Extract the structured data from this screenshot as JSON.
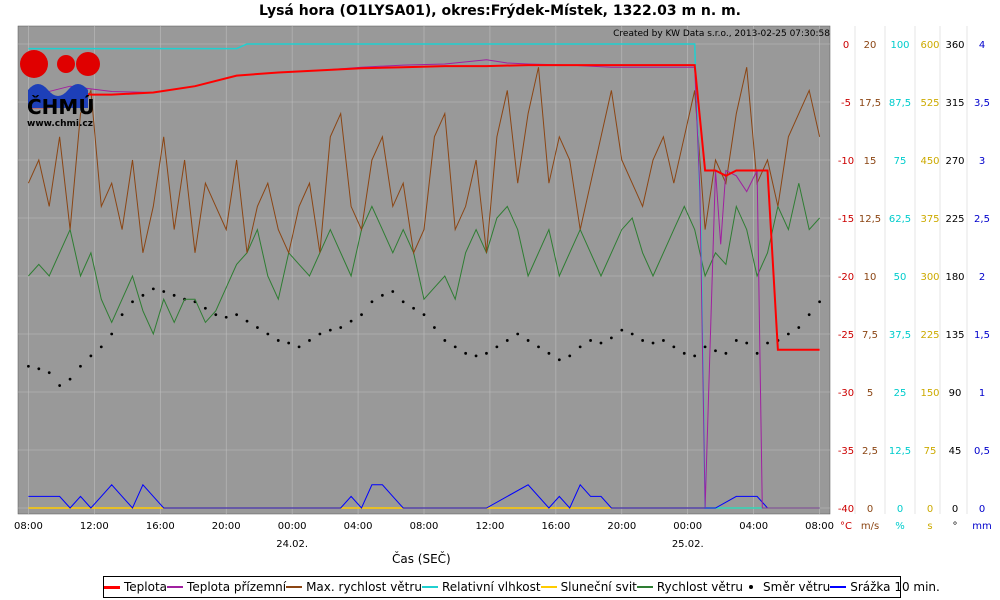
{
  "chart_data": {
    "type": "line",
    "title": "Lysá hora (O1LYSA01), okres:Frýdek-Místek, 1322.03 m n. m.",
    "watermark": "Created by KW Data s.r.o., 2013-02-25 07:30:58",
    "xlabel": "Čas (SEČ)",
    "x_tick_labels": [
      "08:00",
      "12:00",
      "16:00",
      "20:00",
      "00:00",
      "04:00",
      "08:00",
      "12:00",
      "16:00",
      "20:00",
      "00:00",
      "04:00",
      "08:00"
    ],
    "date_labels": [
      {
        "label": "24.02.",
        "at_tick": 4
      },
      {
        "label": "25.02.",
        "at_tick": 10
      }
    ],
    "axes": [
      {
        "unit": "°C",
        "color": "#cc0000",
        "ticks": [
          "0",
          "-5",
          "-10",
          "-15",
          "-20",
          "-25",
          "-30",
          "-35",
          "-40"
        ],
        "range": [
          -42,
          2
        ]
      },
      {
        "unit": "m/s",
        "color": "#8b4513",
        "ticks": [
          "20",
          "17,5",
          "15",
          "12,5",
          "10",
          "7,5",
          "5",
          "2,5",
          "0"
        ],
        "range": [
          0,
          20
        ]
      },
      {
        "unit": "%",
        "color": "#00cccc",
        "ticks": [
          "100",
          "87,5",
          "75",
          "62,5",
          "50",
          "37,5",
          "25",
          "12,5",
          "0"
        ],
        "range": [
          0,
          100
        ]
      },
      {
        "unit": "s",
        "color": "#ccaa00",
        "ticks": [
          "600",
          "525",
          "450",
          "375",
          "300",
          "225",
          "150",
          "75",
          "0"
        ],
        "range": [
          0,
          600
        ]
      },
      {
        "unit": "°",
        "color": "#000000",
        "ticks": [
          "360",
          "315",
          "270",
          "225",
          "180",
          "135",
          "90",
          "45",
          "0"
        ],
        "range": [
          0,
          360
        ]
      },
      {
        "unit": "mm",
        "color": "#0000cc",
        "ticks": [
          "4",
          "3,5",
          "3",
          "2,5",
          "2",
          "1,5",
          "1",
          "0,5",
          "0"
        ],
        "range": [
          0,
          4
        ]
      }
    ],
    "series": [
      {
        "name": "Teplota",
        "color": "#ff0000",
        "width": 2,
        "axis": 0,
        "x": [
          0,
          2,
          4,
          6,
          8,
          12,
          16,
          20,
          24,
          28,
          32,
          36,
          40,
          44,
          48,
          52,
          56,
          60,
          62,
          64,
          64.5,
          65,
          66,
          67,
          68,
          69,
          70,
          71,
          72,
          73,
          74,
          75,
          76
        ],
        "y": [
          -4,
          -4,
          -2.5,
          -2.8,
          -2.8,
          -2.6,
          -2,
          -1,
          -0.7,
          -0.5,
          -0.3,
          -0.2,
          -0.1,
          -0.1,
          0,
          0,
          0,
          0,
          0,
          0,
          -5,
          -10,
          -10,
          -10.5,
          -10,
          -10,
          -10,
          -10,
          -27,
          -27,
          -27,
          -27,
          -27
        ]
      },
      {
        "name": "Teplota přízemní",
        "color": "#a020a0",
        "width": 1,
        "axis": 0,
        "x": [
          0,
          4,
          8,
          12,
          16,
          20,
          24,
          28,
          32,
          36,
          40,
          44,
          46,
          48,
          52,
          56,
          60,
          64,
          64.5,
          65,
          66,
          66.5,
          67,
          68,
          69,
          70,
          70.5,
          71,
          72,
          74,
          76
        ],
        "y": [
          -3,
          -2,
          -2.5,
          -2.6,
          -2,
          -1,
          -0.7,
          -0.5,
          -0.2,
          0,
          0.1,
          0.5,
          0.2,
          0.1,
          0,
          -0.2,
          -0.2,
          -0.2,
          -12,
          -42,
          -10,
          -17,
          -10,
          -10.5,
          -12,
          -10,
          -42,
          -42,
          -42,
          -42,
          -42
        ]
      },
      {
        "name": "Max. rychlost větru",
        "color": "#8b4513",
        "width": 1,
        "axis": 1,
        "x": [
          0,
          1,
          2,
          3,
          4,
          5,
          6,
          7,
          8,
          9,
          10,
          11,
          12,
          13,
          14,
          15,
          16,
          17,
          18,
          19,
          20,
          21,
          22,
          23,
          24,
          25,
          26,
          27,
          28,
          29,
          30,
          31,
          32,
          33,
          34,
          35,
          36,
          37,
          38,
          39,
          40,
          41,
          42,
          43,
          44,
          45,
          46,
          47,
          48,
          49,
          50,
          51,
          52,
          53,
          54,
          55,
          56,
          57,
          58,
          59,
          60,
          61,
          62,
          63,
          64,
          65,
          66,
          67,
          68,
          69,
          70,
          71,
          72,
          73,
          74,
          75,
          76
        ],
        "y": [
          14,
          15,
          13,
          16,
          12,
          17,
          18,
          13,
          14,
          12,
          15,
          11,
          13,
          16,
          12,
          15,
          11,
          14,
          13,
          12,
          15,
          11,
          13,
          14,
          12,
          11,
          13,
          14,
          11,
          16,
          17,
          13,
          12,
          15,
          16,
          13,
          14,
          11,
          12,
          16,
          17,
          12,
          13,
          15,
          11,
          16,
          18,
          14,
          17,
          19,
          14,
          16,
          15,
          12,
          14,
          16,
          18,
          15,
          14,
          13,
          15,
          16,
          14,
          16,
          18,
          12,
          15,
          14,
          17,
          19,
          14,
          15,
          13,
          16,
          17,
          18,
          16
        ]
      },
      {
        "name": "Relativní vlhkost",
        "color": "#20d0d0",
        "width": 1.5,
        "axis": 2,
        "x": [
          0,
          10,
          20,
          21,
          30,
          40,
          50,
          60,
          64,
          64.6,
          65,
          68,
          72,
          76
        ],
        "y": [
          99,
          99,
          99,
          100,
          100,
          100,
          100,
          100,
          100,
          60,
          0,
          0,
          0,
          0
        ]
      },
      {
        "name": "Sluneční svit",
        "color": "#ffcc00",
        "width": 1.5,
        "axis": 3,
        "x": [
          0,
          76
        ],
        "y": [
          0,
          0
        ]
      },
      {
        "name": "Rychlost větru",
        "color": "#2e7d32",
        "width": 1,
        "axis": 1,
        "x": [
          0,
          1,
          2,
          3,
          4,
          5,
          6,
          7,
          8,
          9,
          10,
          11,
          12,
          13,
          14,
          15,
          16,
          17,
          18,
          19,
          20,
          21,
          22,
          23,
          24,
          25,
          26,
          27,
          28,
          29,
          30,
          31,
          32,
          33,
          34,
          35,
          36,
          37,
          38,
          39,
          40,
          41,
          42,
          43,
          44,
          45,
          46,
          47,
          48,
          49,
          50,
          51,
          52,
          53,
          54,
          55,
          56,
          57,
          58,
          59,
          60,
          61,
          62,
          63,
          64,
          65,
          66,
          67,
          68,
          69,
          70,
          71,
          72,
          73,
          74,
          75,
          76
        ],
        "y": [
          10,
          10.5,
          10,
          11,
          12,
          10,
          11,
          9,
          8,
          9,
          10,
          8.5,
          7.5,
          9,
          8,
          9,
          9,
          8,
          8.5,
          9.5,
          10.5,
          11,
          12,
          10,
          9,
          11,
          10.5,
          10,
          11,
          12,
          11,
          10,
          12,
          13,
          12,
          11,
          12,
          11,
          9,
          9.5,
          10,
          9,
          11,
          12,
          11,
          12.5,
          13,
          12,
          10,
          11,
          12,
          10,
          11,
          12,
          11,
          10,
          11,
          12,
          12.5,
          11,
          10,
          11,
          12,
          13,
          12,
          10,
          11,
          10.5,
          13,
          12,
          10,
          11,
          13,
          12,
          14,
          12,
          12.5
        ]
      },
      {
        "name": "Směr větru",
        "color": "#000000",
        "width": 0,
        "dots": true,
        "axis": 4,
        "x": [
          0,
          1,
          2,
          3,
          4,
          5,
          6,
          7,
          8,
          9,
          10,
          11,
          12,
          13,
          14,
          15,
          16,
          17,
          18,
          19,
          20,
          21,
          22,
          23,
          24,
          25,
          26,
          27,
          28,
          29,
          30,
          31,
          32,
          33,
          34,
          35,
          36,
          37,
          38,
          39,
          40,
          41,
          42,
          43,
          44,
          45,
          46,
          47,
          48,
          49,
          50,
          51,
          52,
          53,
          54,
          55,
          56,
          57,
          58,
          59,
          60,
          61,
          62,
          63,
          64,
          65,
          66,
          67,
          68,
          69,
          70,
          71,
          72,
          73,
          74,
          75,
          76
        ],
        "y": [
          110,
          108,
          105,
          95,
          100,
          110,
          118,
          125,
          135,
          150,
          160,
          165,
          170,
          168,
          165,
          162,
          160,
          155,
          150,
          148,
          150,
          145,
          140,
          135,
          130,
          128,
          125,
          130,
          135,
          138,
          140,
          145,
          150,
          160,
          165,
          168,
          160,
          155,
          150,
          140,
          130,
          125,
          120,
          118,
          120,
          125,
          130,
          135,
          130,
          125,
          120,
          115,
          118,
          125,
          130,
          128,
          132,
          138,
          135,
          130,
          128,
          130,
          125,
          120,
          118,
          125,
          122,
          120,
          130,
          128,
          120,
          128,
          130,
          135,
          140,
          150,
          160
        ]
      },
      {
        "name": "Srážka 10 min.",
        "color": "#0000ff",
        "width": 1,
        "axis": 5,
        "x": [
          0,
          1,
          2,
          3,
          4,
          5,
          6,
          7,
          8,
          9,
          10,
          11,
          12,
          13,
          14,
          15,
          16,
          20,
          24,
          28,
          30,
          31,
          32,
          33,
          34,
          35,
          36,
          38,
          40,
          44,
          48,
          50,
          51,
          52,
          53,
          54,
          55,
          56,
          57,
          58,
          60,
          62,
          64,
          66,
          68,
          69,
          70,
          71,
          72,
          74,
          76
        ],
        "y": [
          0.1,
          0.1,
          0.1,
          0.1,
          0,
          0.1,
          0,
          0.1,
          0.2,
          0.1,
          0,
          0.2,
          0.1,
          0,
          0,
          0,
          0,
          0,
          0,
          0,
          0,
          0.1,
          0,
          0.2,
          0.2,
          0.1,
          0,
          0,
          0,
          0,
          0.2,
          0,
          0.1,
          0,
          0.2,
          0.1,
          0.1,
          0,
          0,
          0,
          0,
          0,
          0,
          0,
          0.1,
          0.1,
          0.1,
          0,
          0,
          0,
          0
        ]
      }
    ],
    "x_range": [
      -1,
      77
    ],
    "grid": true
  },
  "logo": {
    "name": "ČHMÚ",
    "url": "www.chmi.cz"
  }
}
